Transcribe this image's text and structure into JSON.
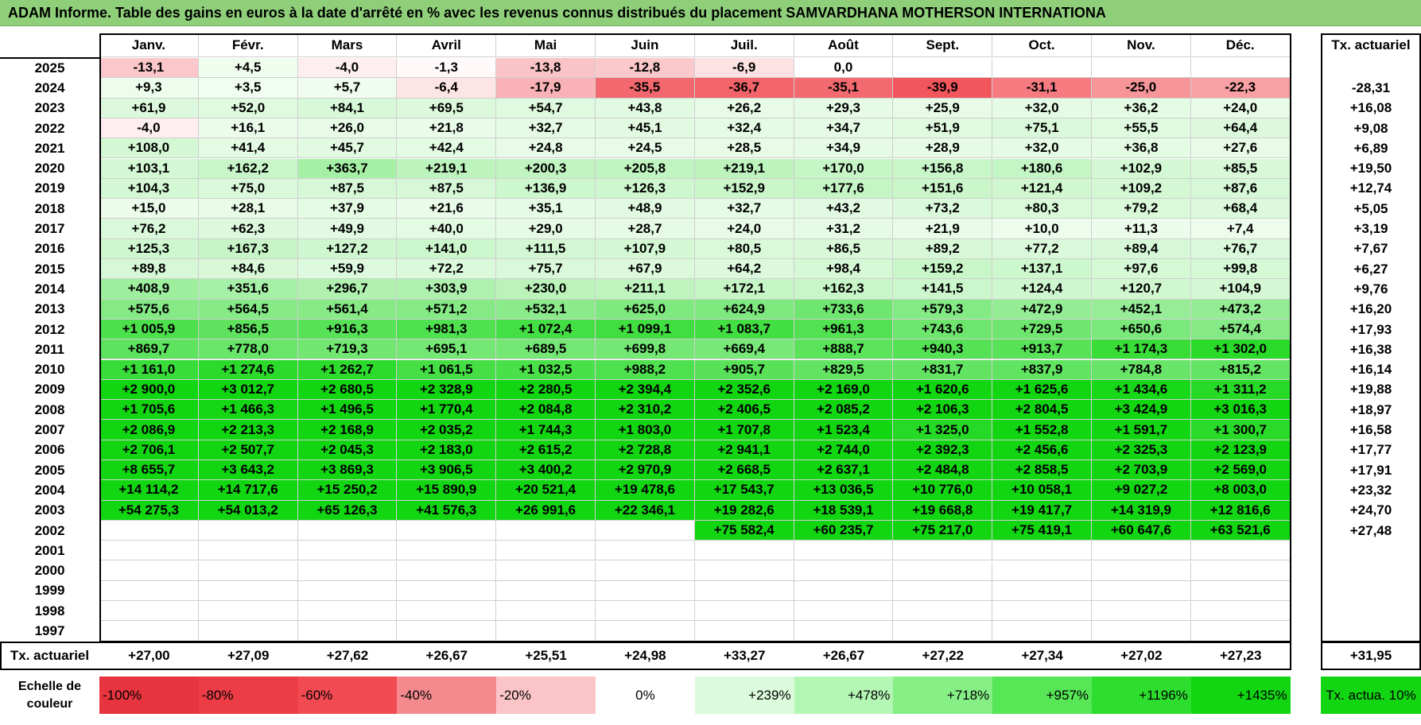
{
  "title": "ADAM Informe. Table des gains en euros à la date d'arrêté en % avec les revenus connus distribués du placement SAMVARDHANA MOTHERSON INTERNATIONA",
  "months": [
    "Janv.",
    "Févr.",
    "Mars",
    "Avril",
    "Mai",
    "Juin",
    "Juil.",
    "Août",
    "Sept.",
    "Oct.",
    "Nov.",
    "Déc."
  ],
  "tx_header": "Tx. actuariel",
  "rows": [
    {
      "year": "2025",
      "values": [
        "-13,1",
        "+4,5",
        "-4,0",
        "-1,3",
        "-13,8",
        "-12,8",
        "-6,9",
        "0,0",
        "",
        "",
        "",
        ""
      ],
      "tx": ""
    },
    {
      "year": "2024",
      "values": [
        "+9,3",
        "+3,5",
        "+5,7",
        "-6,4",
        "-17,9",
        "-35,5",
        "-36,7",
        "-35,1",
        "-39,9",
        "-31,1",
        "-25,0",
        "-22,3"
      ],
      "tx": "-28,31"
    },
    {
      "year": "2023",
      "values": [
        "+61,9",
        "+52,0",
        "+84,1",
        "+69,5",
        "+54,7",
        "+43,8",
        "+26,2",
        "+29,3",
        "+25,9",
        "+32,0",
        "+36,2",
        "+24,0"
      ],
      "tx": "+16,08"
    },
    {
      "year": "2022",
      "values": [
        "-4,0",
        "+16,1",
        "+26,0",
        "+21,8",
        "+32,7",
        "+45,1",
        "+32,4",
        "+34,7",
        "+51,9",
        "+75,1",
        "+55,5",
        "+64,4"
      ],
      "tx": "+9,08"
    },
    {
      "year": "2021",
      "values": [
        "+108,0",
        "+41,4",
        "+45,7",
        "+42,4",
        "+24,8",
        "+24,5",
        "+28,5",
        "+34,9",
        "+28,9",
        "+32,0",
        "+36,8",
        "+27,6"
      ],
      "tx": "+6,89"
    },
    {
      "year": "2020",
      "values": [
        "+103,1",
        "+162,2",
        "+363,7",
        "+219,1",
        "+200,3",
        "+205,8",
        "+219,1",
        "+170,0",
        "+156,8",
        "+180,6",
        "+102,9",
        "+85,5"
      ],
      "tx": "+19,50"
    },
    {
      "year": "2019",
      "values": [
        "+104,3",
        "+75,0",
        "+87,5",
        "+87,5",
        "+136,9",
        "+126,3",
        "+152,9",
        "+177,6",
        "+151,6",
        "+121,4",
        "+109,2",
        "+87,6"
      ],
      "tx": "+12,74"
    },
    {
      "year": "2018",
      "values": [
        "+15,0",
        "+28,1",
        "+37,9",
        "+21,6",
        "+35,1",
        "+48,9",
        "+32,7",
        "+43,2",
        "+73,2",
        "+80,3",
        "+79,2",
        "+68,4"
      ],
      "tx": "+5,05"
    },
    {
      "year": "2017",
      "values": [
        "+76,2",
        "+62,3",
        "+49,9",
        "+40,0",
        "+29,0",
        "+28,7",
        "+24,0",
        "+31,2",
        "+21,9",
        "+10,0",
        "+11,3",
        "+7,4"
      ],
      "tx": "+3,19"
    },
    {
      "year": "2016",
      "values": [
        "+125,3",
        "+167,3",
        "+127,2",
        "+141,0",
        "+111,5",
        "+107,9",
        "+80,5",
        "+86,5",
        "+89,2",
        "+77,2",
        "+89,4",
        "+76,7"
      ],
      "tx": "+7,67"
    },
    {
      "year": "2015",
      "values": [
        "+89,8",
        "+84,6",
        "+59,9",
        "+72,2",
        "+75,7",
        "+67,9",
        "+64,2",
        "+98,4",
        "+159,2",
        "+137,1",
        "+97,6",
        "+99,8"
      ],
      "tx": "+6,27"
    },
    {
      "year": "2014",
      "values": [
        "+408,9",
        "+351,6",
        "+296,7",
        "+303,9",
        "+230,0",
        "+211,1",
        "+172,1",
        "+162,3",
        "+141,5",
        "+124,4",
        "+120,7",
        "+104,9"
      ],
      "tx": "+9,76"
    },
    {
      "year": "2013",
      "values": [
        "+575,6",
        "+564,5",
        "+561,4",
        "+571,2",
        "+532,1",
        "+625,0",
        "+624,9",
        "+733,6",
        "+579,3",
        "+472,9",
        "+452,1",
        "+473,2"
      ],
      "tx": "+16,20"
    },
    {
      "year": "2012",
      "values": [
        "+1 005,9",
        "+856,5",
        "+916,3",
        "+981,3",
        "+1 072,4",
        "+1 099,1",
        "+1 083,7",
        "+961,3",
        "+743,6",
        "+729,5",
        "+650,6",
        "+574,4"
      ],
      "tx": "+17,93"
    },
    {
      "year": "2011",
      "values": [
        "+869,7",
        "+778,0",
        "+719,3",
        "+695,1",
        "+689,5",
        "+699,8",
        "+669,4",
        "+888,7",
        "+940,3",
        "+913,7",
        "+1 174,3",
        "+1 302,0"
      ],
      "tx": "+16,38"
    },
    {
      "year": "2010",
      "values": [
        "+1 161,0",
        "+1 274,6",
        "+1 262,7",
        "+1 061,5",
        "+1 032,5",
        "+988,2",
        "+905,7",
        "+829,5",
        "+831,7",
        "+837,9",
        "+784,8",
        "+815,2"
      ],
      "tx": "+16,14"
    },
    {
      "year": "2009",
      "values": [
        "+2 900,0",
        "+3 012,7",
        "+2 680,5",
        "+2 328,9",
        "+2 280,5",
        "+2 394,4",
        "+2 352,6",
        "+2 169,0",
        "+1 620,6",
        "+1 625,6",
        "+1 434,6",
        "+1 311,2"
      ],
      "tx": "+19,88"
    },
    {
      "year": "2008",
      "values": [
        "+1 705,6",
        "+1 466,3",
        "+1 496,5",
        "+1 770,4",
        "+2 084,8",
        "+2 310,2",
        "+2 406,5",
        "+2 085,2",
        "+2 106,3",
        "+2 804,5",
        "+3 424,9",
        "+3 016,3"
      ],
      "tx": "+18,97"
    },
    {
      "year": "2007",
      "values": [
        "+2 086,9",
        "+2 213,3",
        "+2 168,9",
        "+2 035,2",
        "+1 744,3",
        "+1 803,0",
        "+1 707,8",
        "+1 523,4",
        "+1 325,0",
        "+1 552,8",
        "+1 591,7",
        "+1 300,7"
      ],
      "tx": "+16,58"
    },
    {
      "year": "2006",
      "values": [
        "+2 706,1",
        "+2 507,7",
        "+2 045,3",
        "+2 183,0",
        "+2 615,2",
        "+2 728,8",
        "+2 941,1",
        "+2 744,0",
        "+2 392,3",
        "+2 456,6",
        "+2 325,3",
        "+2 123,9"
      ],
      "tx": "+17,77"
    },
    {
      "year": "2005",
      "values": [
        "+8 655,7",
        "+3 643,2",
        "+3 869,3",
        "+3 906,5",
        "+3 400,2",
        "+2 970,9",
        "+2 668,5",
        "+2 637,1",
        "+2 484,8",
        "+2 858,5",
        "+2 703,9",
        "+2 569,0"
      ],
      "tx": "+17,91"
    },
    {
      "year": "2004",
      "values": [
        "+14 114,2",
        "+14 717,6",
        "+15 250,2",
        "+15 890,9",
        "+20 521,4",
        "+19 478,6",
        "+17 543,7",
        "+13 036,5",
        "+10 776,0",
        "+10 058,1",
        "+9 027,2",
        "+8 003,0"
      ],
      "tx": "+23,32"
    },
    {
      "year": "2003",
      "values": [
        "+54 275,3",
        "+54 013,2",
        "+65 126,3",
        "+41 576,3",
        "+26 991,6",
        "+22 346,1",
        "+19 282,6",
        "+18 539,1",
        "+19 668,8",
        "+19 417,7",
        "+14 319,9",
        "+12 816,6"
      ],
      "tx": "+24,70"
    },
    {
      "year": "2002",
      "values": [
        "",
        "",
        "",
        "",
        "",
        "",
        "+75 582,4",
        "+60 235,7",
        "+75 217,0",
        "+75 419,1",
        "+60 647,6",
        "+63 521,6"
      ],
      "tx": "+27,48"
    },
    {
      "year": "2001",
      "values": [
        "",
        "",
        "",
        "",
        "",
        "",
        "",
        "",
        "",
        "",
        "",
        ""
      ],
      "tx": ""
    },
    {
      "year": "2000",
      "values": [
        "",
        "",
        "",
        "",
        "",
        "",
        "",
        "",
        "",
        "",
        "",
        ""
      ],
      "tx": ""
    },
    {
      "year": "1999",
      "values": [
        "",
        "",
        "",
        "",
        "",
        "",
        "",
        "",
        "",
        "",
        "",
        ""
      ],
      "tx": ""
    },
    {
      "year": "1998",
      "values": [
        "",
        "",
        "",
        "",
        "",
        "",
        "",
        "",
        "",
        "",
        "",
        ""
      ],
      "tx": ""
    },
    {
      "year": "1997",
      "values": [
        "",
        "",
        "",
        "",
        "",
        "",
        "",
        "",
        "",
        "",
        "",
        ""
      ],
      "tx": ""
    }
  ],
  "footer": {
    "label": "Tx. actuariel",
    "values": [
      "+27,00",
      "+27,09",
      "+27,62",
      "+26,67",
      "+25,51",
      "+24,98",
      "+33,27",
      "+26,67",
      "+27,22",
      "+27,34",
      "+27,02",
      "+27,23"
    ],
    "total": "+31,95"
  },
  "scale": {
    "label": "Echelle de couleur",
    "items": [
      {
        "text": "-100%",
        "color": "#e8343f"
      },
      {
        "text": "-80%",
        "color": "#ec3c45"
      },
      {
        "text": "-60%",
        "color": "#f24a52"
      },
      {
        "text": "-40%",
        "color": "#f58a8e"
      },
      {
        "text": "-20%",
        "color": "#fbc4c6"
      },
      {
        "text": "0%",
        "color": "#ffffff"
      },
      {
        "text": "+239%",
        "color": "#dcfbdc"
      },
      {
        "text": "+478%",
        "color": "#b4f7b4"
      },
      {
        "text": "+718%",
        "color": "#86f086"
      },
      {
        "text": "+957%",
        "color": "#56e656"
      },
      {
        "text": "+1196%",
        "color": "#2ede2e"
      },
      {
        "text": "+1435%",
        "color": "#12d612"
      }
    ],
    "tx_label": "Tx. actua. 10%",
    "tx_color": "#12d612"
  },
  "colors": {
    "title_bg": "#8fcf7a",
    "neg_max": "#f04048",
    "pos_max": "#12d612"
  }
}
